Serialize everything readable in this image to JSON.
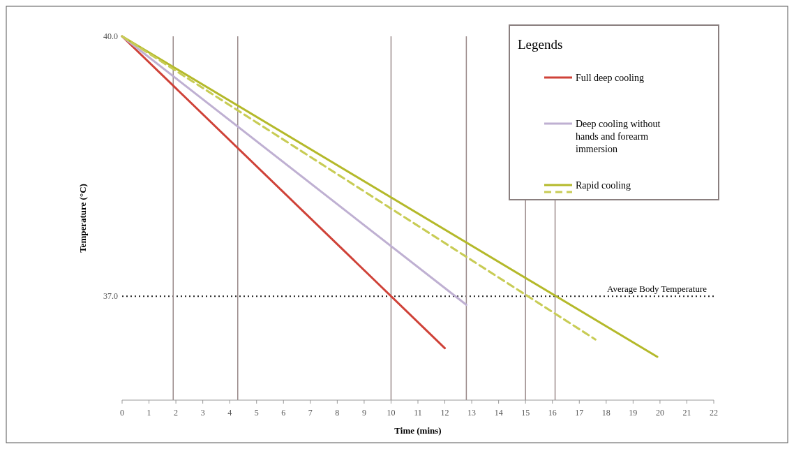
{
  "chart_data": {
    "type": "line",
    "xlabel": "Time (mins)",
    "ylabel": "Temperature (°C)",
    "legend_title": "Legends",
    "legend": "top right",
    "grid": false,
    "marker": "none",
    "xlim": [
      0,
      22
    ],
    "xticks": [
      0,
      1,
      2,
      3,
      4,
      5,
      6,
      7,
      8,
      9,
      10,
      11,
      12,
      13,
      14,
      15,
      16,
      17,
      18,
      19,
      20,
      21,
      22
    ],
    "ylim": [
      35.8,
      40.0
    ],
    "yticks": [
      {
        "value": 40,
        "label": "40.0"
      },
      {
        "value": 37,
        "label": "37.0"
      }
    ],
    "series": [
      {
        "name": "Full deep cooling",
        "color": "#cf4238",
        "line_style": "solid",
        "x": [
          0,
          12
        ],
        "values": [
          40,
          36.4
        ]
      },
      {
        "name": "Deep cooling without hands and forearm immersion",
        "color": "#bfb0d2",
        "line_style": "solid",
        "x": [
          0,
          12.8
        ],
        "values": [
          40,
          36.9
        ]
      },
      {
        "name": "Rapid cooling",
        "color": "#b4b92a",
        "line_style": "solid",
        "x": [
          0,
          19.9
        ],
        "values": [
          40,
          36.3
        ]
      },
      {
        "color": "#c8cc55",
        "line_style": "dashed",
        "x": [
          0,
          17.6
        ],
        "values": [
          40,
          36.5
        ]
      }
    ],
    "ref_lines": [
      {
        "axis": "y",
        "value": 37,
        "label": "Average Body Temperature",
        "color": "#222222",
        "line_style": "dotted"
      },
      {
        "axis": "x",
        "value": 1.9,
        "color": "#9a8a8a",
        "line_style": "solid"
      },
      {
        "axis": "x",
        "value": 4.3,
        "color": "#9a8a8a",
        "line_style": "solid"
      },
      {
        "axis": "x",
        "value": 10,
        "color": "#9a8a8a",
        "line_style": "solid"
      },
      {
        "axis": "x",
        "value": 12.8,
        "color": "#9a8a8a",
        "line_style": "solid"
      },
      {
        "axis": "x",
        "value": 15,
        "color": "#9a8a8a",
        "line_style": "solid"
      },
      {
        "axis": "x",
        "value": 16.1,
        "color": "#9a8a8a",
        "line_style": "solid"
      }
    ]
  }
}
